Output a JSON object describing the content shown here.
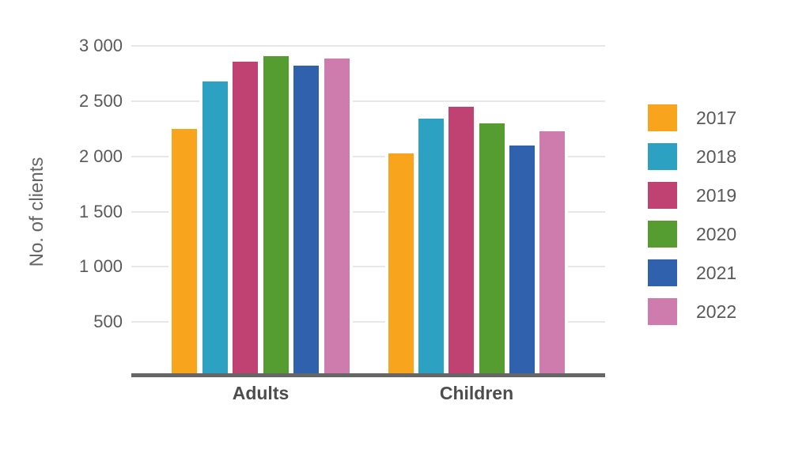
{
  "chart_data": {
    "type": "bar",
    "title": "",
    "ylabel": "No. of clients",
    "xlabel": "",
    "categories": [
      "Adults",
      "Children"
    ],
    "series": [
      {
        "name": "2017",
        "color": "#F8A51D",
        "values": [
          2250,
          2030
        ]
      },
      {
        "name": "2018",
        "color": "#2CA1C2",
        "values": [
          2680,
          2340
        ]
      },
      {
        "name": "2019",
        "color": "#BF4273",
        "values": [
          2860,
          2450
        ]
      },
      {
        "name": "2020",
        "color": "#559D30",
        "values": [
          2910,
          2300
        ]
      },
      {
        "name": "2021",
        "color": "#3061AC",
        "values": [
          2820,
          2100
        ]
      },
      {
        "name": "2022",
        "color": "#CE7BAE",
        "values": [
          2890,
          2230
        ]
      }
    ],
    "yticks": [
      {
        "value": 500,
        "label": "500"
      },
      {
        "value": 1000,
        "label": "1 000"
      },
      {
        "value": 1500,
        "label": "1 500"
      },
      {
        "value": 2000,
        "label": "2 000"
      },
      {
        "value": 2500,
        "label": "2 500"
      },
      {
        "value": 3000,
        "label": "3 000"
      }
    ],
    "ylim": [
      0,
      3000
    ],
    "grid": true,
    "legend_position": "right"
  },
  "colors": {
    "background": "#FFFFFF",
    "gridline": "#E4E8EB",
    "axis_line": "#666666",
    "tick_text": "#595959",
    "category_text": "#4D4D4D",
    "axis_title_text": "#666666",
    "legend_text": "#595959"
  }
}
